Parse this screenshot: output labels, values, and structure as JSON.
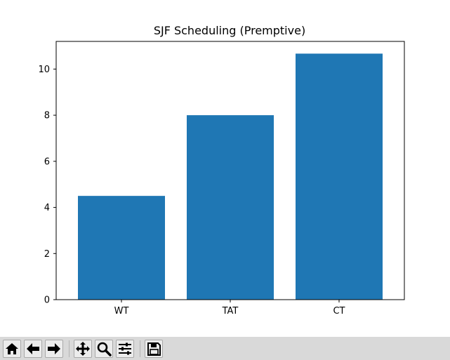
{
  "chart_data": {
    "type": "bar",
    "title": "SJF Scheduling (Premptive)",
    "xlabel": "",
    "ylabel": "",
    "categories": [
      "WT",
      "TAT",
      "CT"
    ],
    "values": [
      4.5,
      8.0,
      10.67
    ],
    "ylim": [
      0,
      11.2
    ],
    "yticks": [
      "0",
      "2",
      "4",
      "6",
      "8",
      "10"
    ],
    "bar_color": "#1f77b4",
    "grid": false,
    "legend": "none"
  },
  "toolbar": {
    "buttons": [
      {
        "name": "home-button",
        "icon": "home-icon"
      },
      {
        "name": "back-button",
        "icon": "arrow-left-icon"
      },
      {
        "name": "forward-button",
        "icon": "arrow-right-icon"
      },
      {
        "name": "pan-button",
        "icon": "move-icon"
      },
      {
        "name": "zoom-button",
        "icon": "magnifier-icon"
      },
      {
        "name": "configure-subplots-button",
        "icon": "sliders-icon"
      },
      {
        "name": "save-button",
        "icon": "floppy-disk-icon"
      }
    ]
  }
}
